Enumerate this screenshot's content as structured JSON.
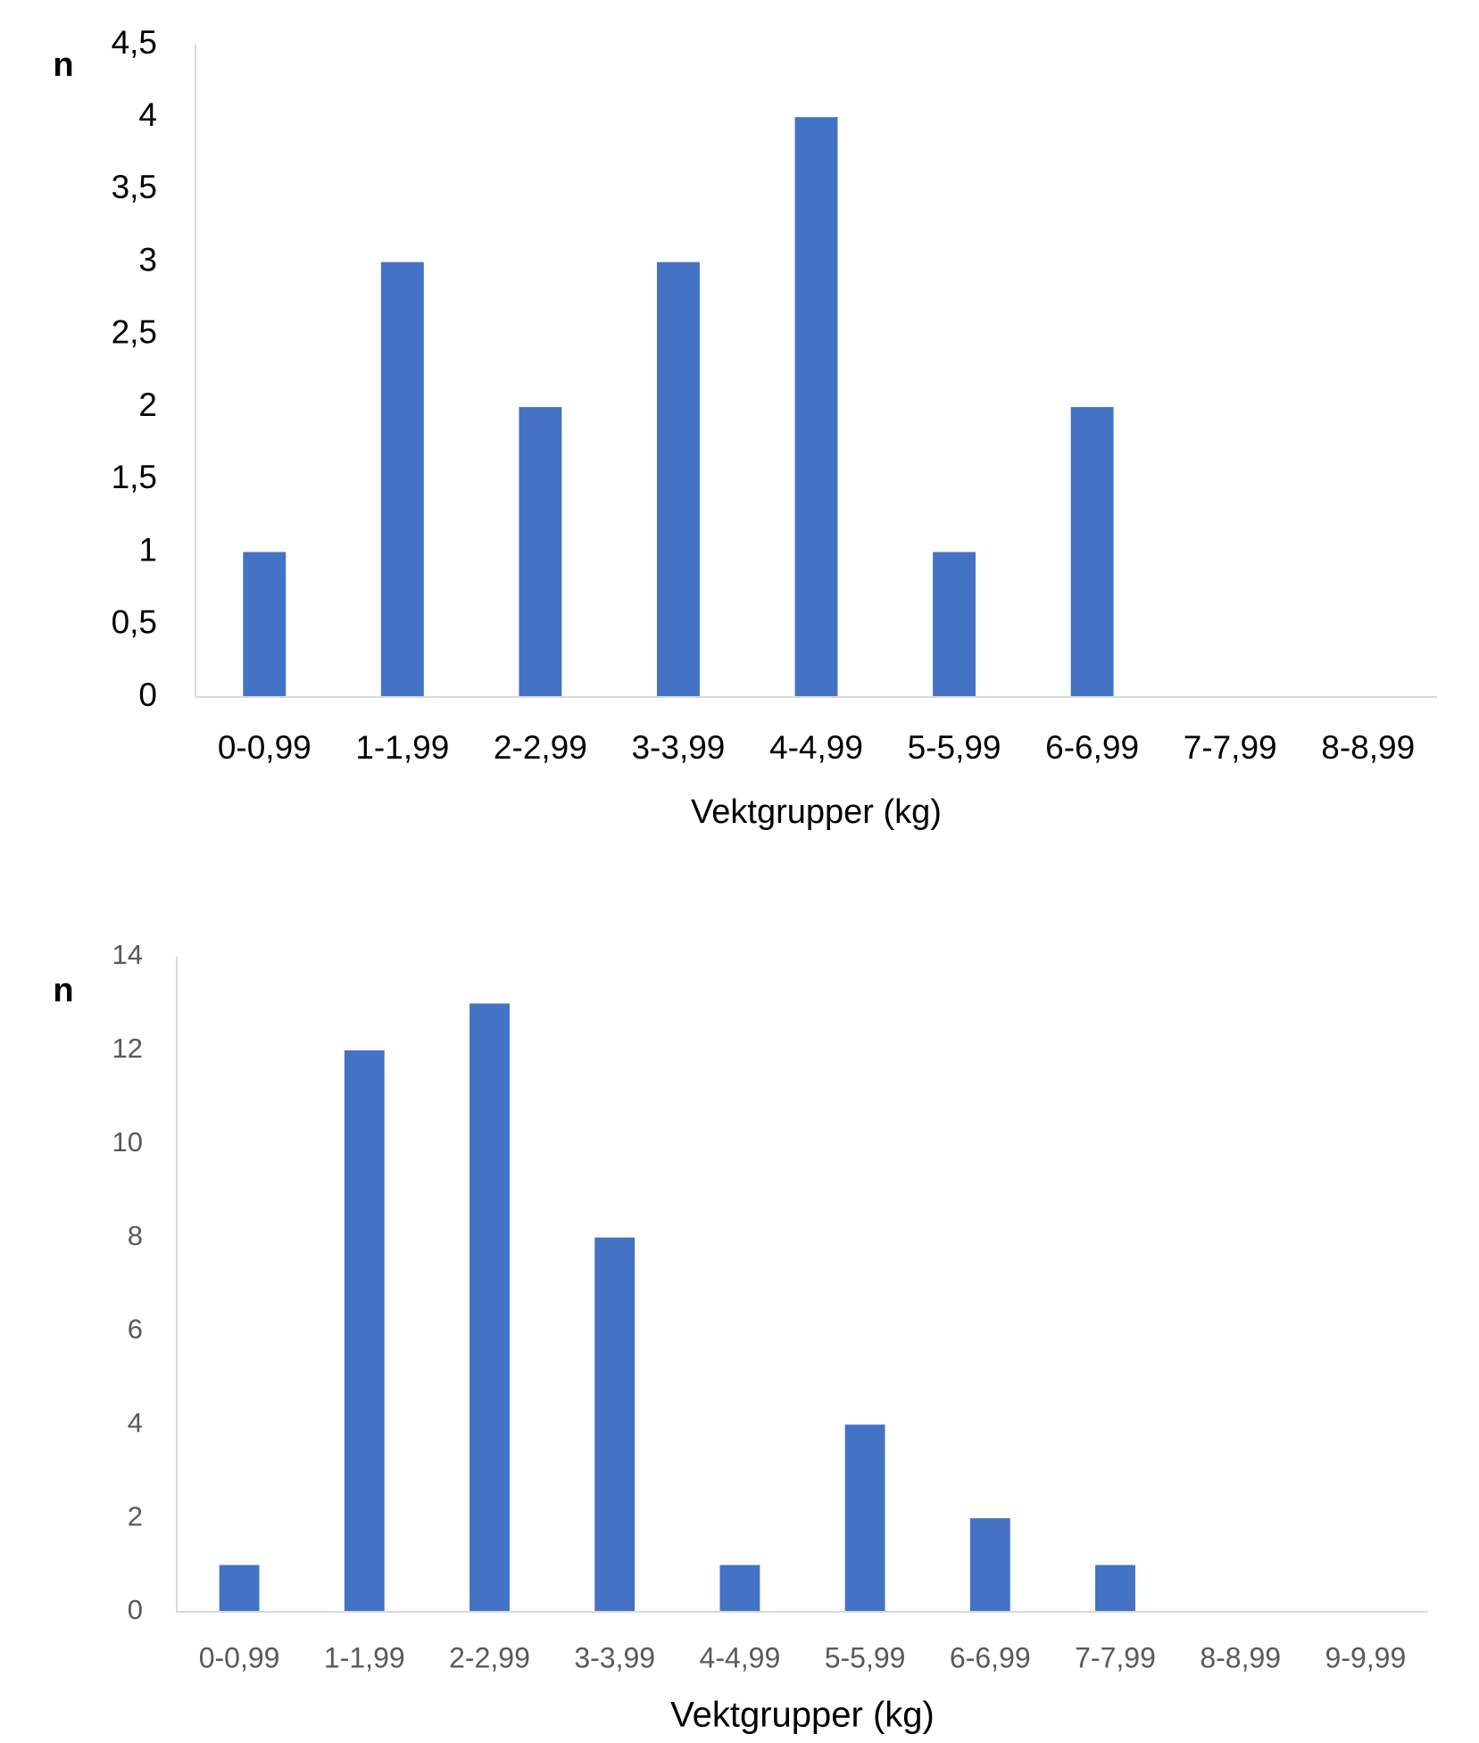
{
  "chart_data": [
    {
      "type": "bar",
      "ylabel": "n",
      "xlabel": "Vektgrupper (kg)",
      "color": "#4472c4",
      "categories": [
        "0-0,99",
        "1-1,99",
        "2-2,99",
        "3-3,99",
        "4-4,99",
        "5-5,99",
        "6-6,99",
        "7-7,99",
        "8-8,99"
      ],
      "values": [
        1,
        3,
        2,
        3,
        4,
        1,
        2,
        0,
        0
      ],
      "ylim": [
        0,
        4.5
      ],
      "yticks": [
        0,
        {
          "value": 0.5,
          "label": "0,5"
        },
        1,
        {
          "value": 1.5,
          "label": "1,5"
        },
        2,
        {
          "value": 2.5,
          "label": "2,5"
        },
        3,
        {
          "value": 3.5,
          "label": "3,5"
        },
        4,
        {
          "value": 4.5,
          "label": "4,5"
        }
      ],
      "grid": false
    },
    {
      "type": "bar",
      "ylabel": "n",
      "xlabel": "Vektgrupper (kg)",
      "color": "#4472c4",
      "categories": [
        "0-0,99",
        "1-1,99",
        "2-2,99",
        "3-3,99",
        "4-4,99",
        "5-5,99",
        "6-6,99",
        "7-7,99",
        "8-8,99",
        "9-9,99"
      ],
      "values": [
        1,
        12,
        13,
        8,
        1,
        4,
        2,
        1,
        0,
        0
      ],
      "ylim": [
        0,
        14
      ],
      "yticks": [
        0,
        2,
        4,
        6,
        8,
        10,
        12,
        14
      ],
      "grid": false
    }
  ]
}
